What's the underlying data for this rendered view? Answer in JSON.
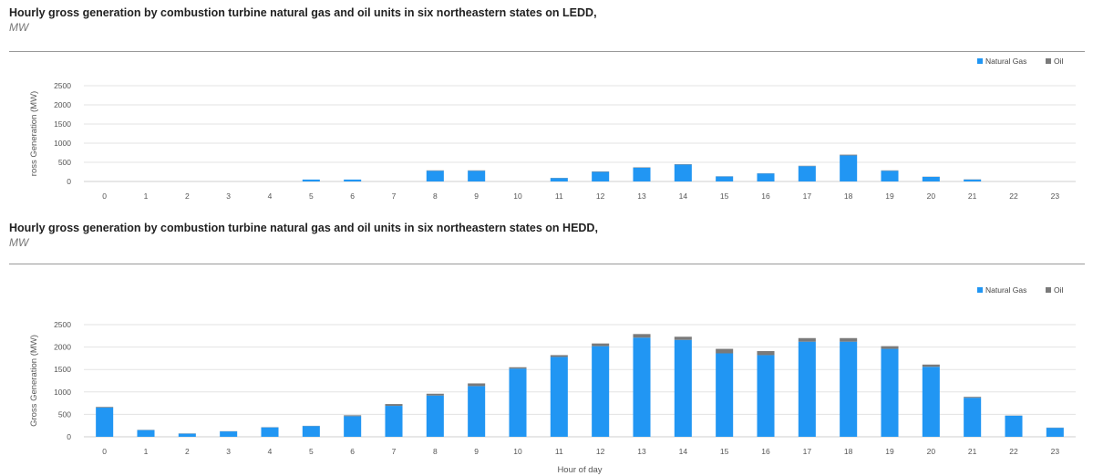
{
  "colors": {
    "natural_gas": "#2196f3",
    "oil": "#7a7a7a",
    "grid": "#e3e3e3"
  },
  "chart_data": [
    {
      "type": "bar",
      "stacked": true,
      "title": "Hourly gross generation by combustion turbine natural gas and oil units in six northeastern states on LEDD,",
      "subtitle": "MW",
      "ylabel": "ross Generation (MW)",
      "xlabel": "",
      "ylim": [
        0,
        2500
      ],
      "yticks": [
        "0",
        "500",
        "1000",
        "1500",
        "2000",
        "2500"
      ],
      "legend_position": "top-right",
      "categories": [
        "0",
        "1",
        "2",
        "3",
        "4",
        "5",
        "6",
        "7",
        "8",
        "9",
        "10",
        "11",
        "12",
        "13",
        "14",
        "15",
        "16",
        "17",
        "18",
        "19",
        "20",
        "21",
        "22",
        "23"
      ],
      "series": [
        {
          "name": "Natural Gas",
          "values": [
            0,
            0,
            0,
            0,
            0,
            50,
            50,
            0,
            280,
            280,
            0,
            90,
            250,
            360,
            440,
            130,
            210,
            400,
            680,
            280,
            120,
            50,
            0,
            0
          ]
        },
        {
          "name": "Oil",
          "values": [
            0,
            0,
            0,
            0,
            0,
            0,
            0,
            0,
            10,
            10,
            0,
            5,
            10,
            10,
            10,
            5,
            5,
            10,
            20,
            10,
            5,
            5,
            0,
            0
          ]
        }
      ]
    },
    {
      "type": "bar",
      "stacked": true,
      "title": "Hourly gross generation by combustion turbine natural gas and oil units in six northeastern states on HEDD,",
      "subtitle": "MW",
      "ylabel": "Gross Generation (MW)",
      "xlabel": "Hour of day",
      "ylim": [
        0,
        2500
      ],
      "yticks": [
        "0",
        "500",
        "1000",
        "1500",
        "2000",
        "2500"
      ],
      "legend_position": "top-right",
      "categories": [
        "0",
        "1",
        "2",
        "3",
        "4",
        "5",
        "6",
        "7",
        "8",
        "9",
        "10",
        "11",
        "12",
        "13",
        "14",
        "15",
        "16",
        "17",
        "18",
        "19",
        "20",
        "21",
        "22",
        "23"
      ],
      "series": [
        {
          "name": "Natural Gas",
          "values": [
            650,
            150,
            70,
            120,
            210,
            240,
            460,
            690,
            920,
            1130,
            1520,
            1780,
            2020,
            2210,
            2160,
            1860,
            1820,
            2120,
            2120,
            1960,
            1560,
            870,
            470,
            200
          ]
        },
        {
          "name": "Oil",
          "values": [
            15,
            5,
            5,
            5,
            5,
            5,
            20,
            40,
            40,
            60,
            30,
            40,
            60,
            80,
            70,
            100,
            90,
            80,
            80,
            60,
            50,
            20,
            5,
            5
          ]
        }
      ]
    }
  ]
}
